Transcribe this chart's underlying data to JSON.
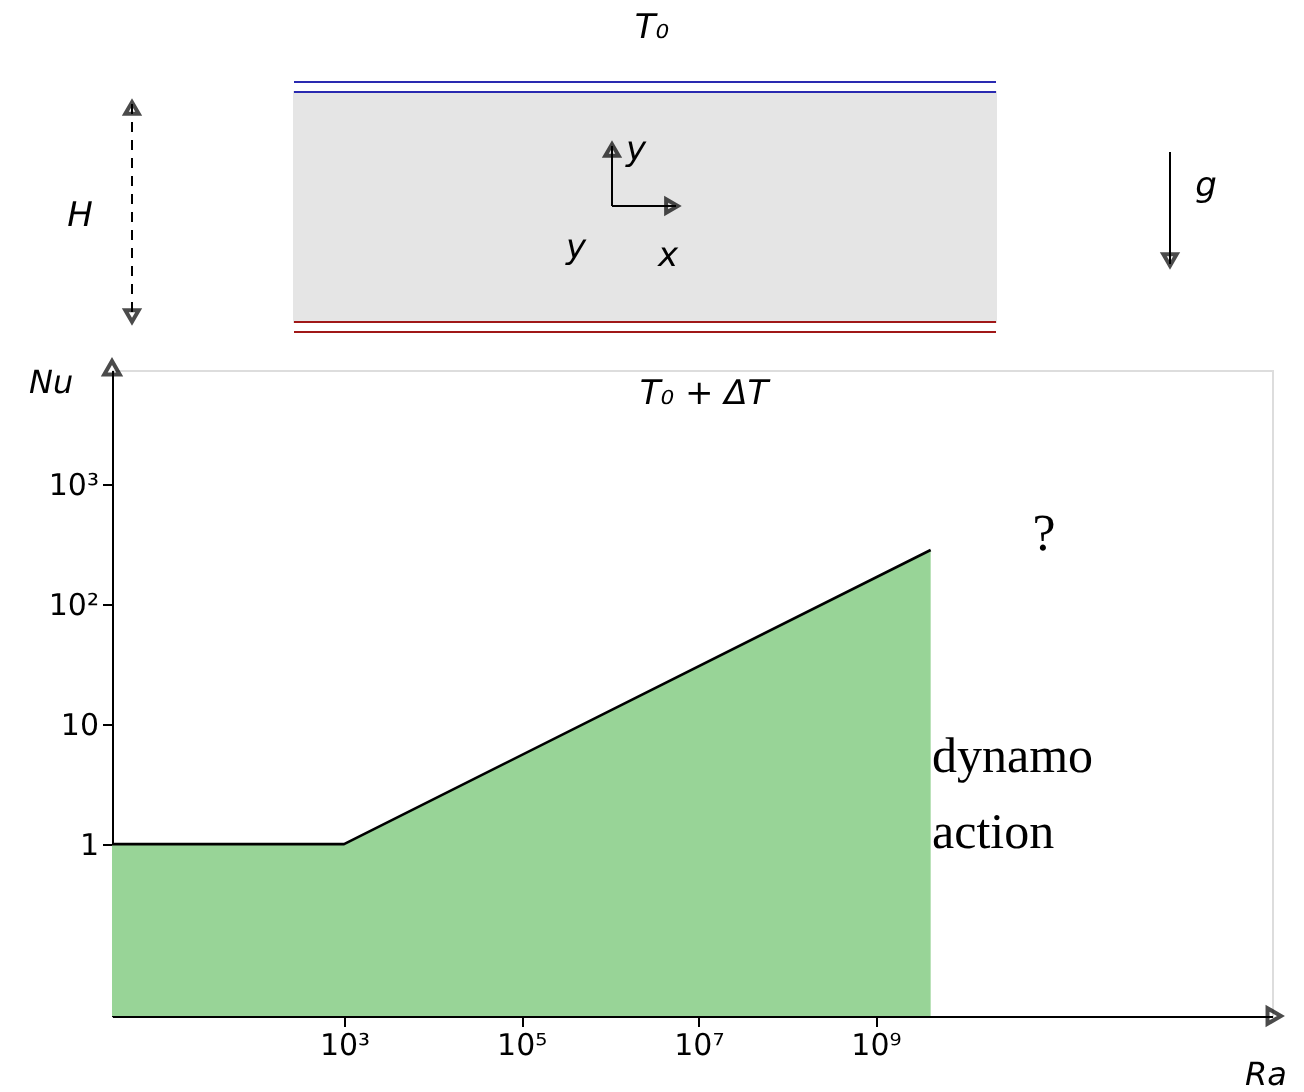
{
  "chart_data": {
    "type": "area",
    "x": [
      2.4,
      1000,
      4200000000
    ],
    "series": [
      {
        "color": "#98d497",
        "values": [
          1,
          1,
          282
        ]
      }
    ],
    "xlabel": "Ra",
    "ylabel": "Nu",
    "log": "xy",
    "xlim": [
      2.4,
      30000000000000
    ],
    "ylim": [
      0.037,
      8900
    ],
    "xticks": [
      {
        "value": 1000,
        "label": "10³"
      },
      {
        "value": 100000,
        "label": "10⁵"
      },
      {
        "value": 10000000,
        "label": "10⁷"
      },
      {
        "value": 1000000000,
        "label": "10⁹"
      }
    ],
    "yticks": [
      1,
      10,
      {
        "value": 100,
        "label": "10²"
      },
      {
        "value": 1000,
        "label": "10³"
      }
    ],
    "grid": false,
    "annotations": [
      "?",
      "dynamo action",
      "T₀",
      "T₀ + ΔT",
      "H",
      "g",
      "y",
      "y",
      "x"
    ]
  }
}
